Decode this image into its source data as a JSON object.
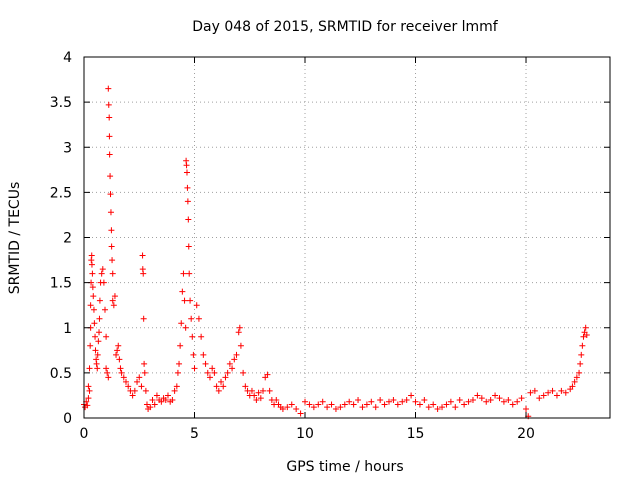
{
  "chart_data": {
    "type": "scatter",
    "title": "Day 048 of 2015, SRMTID for receiver lmmf",
    "xlabel": "GPS time / hours",
    "ylabel": "SRMTID / TECUs",
    "xlim": [
      0,
      23.8
    ],
    "ylim": [
      0,
      4
    ],
    "xticks": [
      0,
      5,
      10,
      15,
      20
    ],
    "xtick_labels": [
      "0",
      "5",
      "10",
      "15",
      "20"
    ],
    "yticks": [
      0,
      0.5,
      1,
      1.5,
      2,
      2.5,
      3,
      3.5,
      4
    ],
    "ytick_labels": [
      "0",
      "0.5",
      "1",
      "1.5",
      "2",
      "2.5",
      "3",
      "3.5",
      "4"
    ],
    "grid": true,
    "marker": "plus",
    "color": "#ff0000",
    "series": [
      {
        "name": "SRMTID",
        "points": [
          [
            0.0,
            0.15
          ],
          [
            0.05,
            0.12
          ],
          [
            0.1,
            0.18
          ],
          [
            0.15,
            0.14
          ],
          [
            0.2,
            0.22
          ],
          [
            0.2,
            0.35
          ],
          [
            0.25,
            0.3
          ],
          [
            0.25,
            0.55
          ],
          [
            0.28,
            0.8
          ],
          [
            0.3,
            1.0
          ],
          [
            0.3,
            1.25
          ],
          [
            0.32,
            1.5
          ],
          [
            0.33,
            1.75
          ],
          [
            0.35,
            1.8
          ],
          [
            0.36,
            1.7
          ],
          [
            0.38,
            1.6
          ],
          [
            0.4,
            1.45
          ],
          [
            0.42,
            1.35
          ],
          [
            0.45,
            1.2
          ],
          [
            0.47,
            1.05
          ],
          [
            0.5,
            0.9
          ],
          [
            0.52,
            0.75
          ],
          [
            0.55,
            0.65
          ],
          [
            0.57,
            0.6
          ],
          [
            0.6,
            0.55
          ],
          [
            0.62,
            0.7
          ],
          [
            0.65,
            0.85
          ],
          [
            0.68,
            0.95
          ],
          [
            0.7,
            1.1
          ],
          [
            0.72,
            1.3
          ],
          [
            0.75,
            1.5
          ],
          [
            0.8,
            1.6
          ],
          [
            0.85,
            1.65
          ],
          [
            0.9,
            1.5
          ],
          [
            0.95,
            1.2
          ],
          [
            1.0,
            0.9
          ],
          [
            1.0,
            0.55
          ],
          [
            1.05,
            0.5
          ],
          [
            1.1,
            0.45
          ],
          [
            1.1,
            3.65
          ],
          [
            1.12,
            3.47
          ],
          [
            1.14,
            3.33
          ],
          [
            1.15,
            3.12
          ],
          [
            1.16,
            2.92
          ],
          [
            1.18,
            2.68
          ],
          [
            1.2,
            2.48
          ],
          [
            1.22,
            2.28
          ],
          [
            1.24,
            2.08
          ],
          [
            1.25,
            1.9
          ],
          [
            1.27,
            1.75
          ],
          [
            1.3,
            1.6
          ],
          [
            1.3,
            1.3
          ],
          [
            1.35,
            1.25
          ],
          [
            1.4,
            1.35
          ],
          [
            1.45,
            0.7
          ],
          [
            1.5,
            0.75
          ],
          [
            1.55,
            0.8
          ],
          [
            1.6,
            0.65
          ],
          [
            1.65,
            0.55
          ],
          [
            1.7,
            0.5
          ],
          [
            1.8,
            0.45
          ],
          [
            1.9,
            0.4
          ],
          [
            2.0,
            0.35
          ],
          [
            2.1,
            0.3
          ],
          [
            2.2,
            0.25
          ],
          [
            2.3,
            0.3
          ],
          [
            2.4,
            0.4
          ],
          [
            2.5,
            0.45
          ],
          [
            2.6,
            0.35
          ],
          [
            2.65,
            1.8
          ],
          [
            2.66,
            1.65
          ],
          [
            2.68,
            1.6
          ],
          [
            2.7,
            1.1
          ],
          [
            2.72,
            0.6
          ],
          [
            2.75,
            0.5
          ],
          [
            2.8,
            0.3
          ],
          [
            2.85,
            0.15
          ],
          [
            2.9,
            0.1
          ],
          [
            3.0,
            0.12
          ],
          [
            3.1,
            0.2
          ],
          [
            3.2,
            0.15
          ],
          [
            3.3,
            0.25
          ],
          [
            3.4,
            0.2
          ],
          [
            3.5,
            0.18
          ],
          [
            3.6,
            0.22
          ],
          [
            3.7,
            0.2
          ],
          [
            3.8,
            0.25
          ],
          [
            3.9,
            0.18
          ],
          [
            4.0,
            0.2
          ],
          [
            4.1,
            0.3
          ],
          [
            4.2,
            0.35
          ],
          [
            4.25,
            0.5
          ],
          [
            4.3,
            0.6
          ],
          [
            4.35,
            0.8
          ],
          [
            4.4,
            1.05
          ],
          [
            4.45,
            1.4
          ],
          [
            4.5,
            1.6
          ],
          [
            4.55,
            1.3
          ],
          [
            4.6,
            1.0
          ],
          [
            4.62,
            2.85
          ],
          [
            4.64,
            2.8
          ],
          [
            4.66,
            2.72
          ],
          [
            4.68,
            2.55
          ],
          [
            4.7,
            2.4
          ],
          [
            4.72,
            2.2
          ],
          [
            4.74,
            1.9
          ],
          [
            4.76,
            1.6
          ],
          [
            4.8,
            1.3
          ],
          [
            4.85,
            1.1
          ],
          [
            4.9,
            0.9
          ],
          [
            4.95,
            0.7
          ],
          [
            5.0,
            0.55
          ],
          [
            5.1,
            1.25
          ],
          [
            5.2,
            1.1
          ],
          [
            5.3,
            0.9
          ],
          [
            5.4,
            0.7
          ],
          [
            5.5,
            0.6
          ],
          [
            5.6,
            0.5
          ],
          [
            5.7,
            0.45
          ],
          [
            5.8,
            0.55
          ],
          [
            5.9,
            0.5
          ],
          [
            6.0,
            0.35
          ],
          [
            6.1,
            0.3
          ],
          [
            6.2,
            0.4
          ],
          [
            6.3,
            0.35
          ],
          [
            6.4,
            0.45
          ],
          [
            6.5,
            0.5
          ],
          [
            6.6,
            0.6
          ],
          [
            6.7,
            0.55
          ],
          [
            6.8,
            0.65
          ],
          [
            6.9,
            0.7
          ],
          [
            7.0,
            0.95
          ],
          [
            7.05,
            1.0
          ],
          [
            7.1,
            0.8
          ],
          [
            7.2,
            0.5
          ],
          [
            7.3,
            0.35
          ],
          [
            7.4,
            0.3
          ],
          [
            7.5,
            0.25
          ],
          [
            7.6,
            0.3
          ],
          [
            7.7,
            0.25
          ],
          [
            7.8,
            0.2
          ],
          [
            7.9,
            0.28
          ],
          [
            8.0,
            0.22
          ],
          [
            8.1,
            0.3
          ],
          [
            8.2,
            0.45
          ],
          [
            8.3,
            0.48
          ],
          [
            8.4,
            0.3
          ],
          [
            8.5,
            0.2
          ],
          [
            8.6,
            0.15
          ],
          [
            8.7,
            0.2
          ],
          [
            8.8,
            0.15
          ],
          [
            8.9,
            0.12
          ],
          [
            9.0,
            0.1
          ],
          [
            9.2,
            0.12
          ],
          [
            9.4,
            0.15
          ],
          [
            9.6,
            0.1
          ],
          [
            9.8,
            0.05
          ],
          [
            10.0,
            0.18
          ],
          [
            10.2,
            0.15
          ],
          [
            10.4,
            0.12
          ],
          [
            10.6,
            0.15
          ],
          [
            10.8,
            0.18
          ],
          [
            11.0,
            0.12
          ],
          [
            11.2,
            0.15
          ],
          [
            11.4,
            0.1
          ],
          [
            11.6,
            0.12
          ],
          [
            11.8,
            0.15
          ],
          [
            12.0,
            0.18
          ],
          [
            12.2,
            0.15
          ],
          [
            12.4,
            0.2
          ],
          [
            12.6,
            0.12
          ],
          [
            12.8,
            0.15
          ],
          [
            13.0,
            0.18
          ],
          [
            13.2,
            0.12
          ],
          [
            13.4,
            0.2
          ],
          [
            13.6,
            0.15
          ],
          [
            13.8,
            0.18
          ],
          [
            14.0,
            0.2
          ],
          [
            14.2,
            0.15
          ],
          [
            14.4,
            0.18
          ],
          [
            14.6,
            0.2
          ],
          [
            14.8,
            0.25
          ],
          [
            15.0,
            0.18
          ],
          [
            15.2,
            0.15
          ],
          [
            15.4,
            0.2
          ],
          [
            15.6,
            0.12
          ],
          [
            15.8,
            0.15
          ],
          [
            16.0,
            0.1
          ],
          [
            16.2,
            0.12
          ],
          [
            16.4,
            0.15
          ],
          [
            16.6,
            0.18
          ],
          [
            16.8,
            0.12
          ],
          [
            17.0,
            0.2
          ],
          [
            17.2,
            0.15
          ],
          [
            17.4,
            0.18
          ],
          [
            17.6,
            0.2
          ],
          [
            17.8,
            0.25
          ],
          [
            18.0,
            0.22
          ],
          [
            18.2,
            0.18
          ],
          [
            18.4,
            0.2
          ],
          [
            18.6,
            0.25
          ],
          [
            18.8,
            0.22
          ],
          [
            19.0,
            0.18
          ],
          [
            19.2,
            0.2
          ],
          [
            19.4,
            0.15
          ],
          [
            19.6,
            0.18
          ],
          [
            19.8,
            0.22
          ],
          [
            20.0,
            0.1
          ],
          [
            20.1,
            0.02
          ],
          [
            20.2,
            0.28
          ],
          [
            20.4,
            0.3
          ],
          [
            20.6,
            0.22
          ],
          [
            20.8,
            0.25
          ],
          [
            21.0,
            0.28
          ],
          [
            21.2,
            0.3
          ],
          [
            21.4,
            0.25
          ],
          [
            21.6,
            0.3
          ],
          [
            21.8,
            0.28
          ],
          [
            22.0,
            0.32
          ],
          [
            22.1,
            0.35
          ],
          [
            22.2,
            0.4
          ],
          [
            22.3,
            0.45
          ],
          [
            22.4,
            0.5
          ],
          [
            22.45,
            0.6
          ],
          [
            22.5,
            0.7
          ],
          [
            22.55,
            0.8
          ],
          [
            22.6,
            0.9
          ],
          [
            22.65,
            0.95
          ],
          [
            22.7,
            1.0
          ],
          [
            22.75,
            0.92
          ]
        ]
      }
    ]
  }
}
